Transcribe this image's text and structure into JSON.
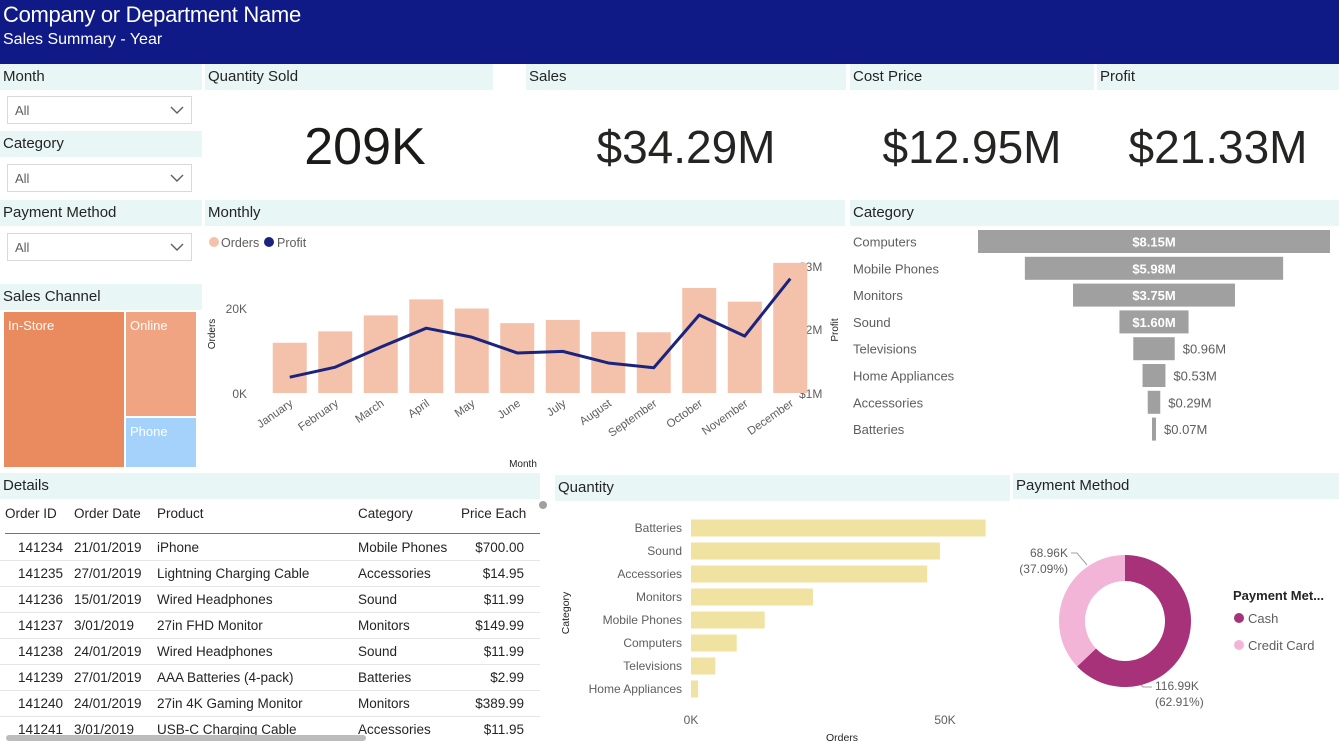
{
  "header": {
    "title": "Company or Department Name",
    "subtitle": "Sales Summary - Year"
  },
  "slicers": {
    "month": {
      "label": "Month",
      "value": "All"
    },
    "category": {
      "label": "Category",
      "value": "All"
    },
    "payment": {
      "label": "Payment Method",
      "value": "All"
    }
  },
  "kpis": {
    "quantity": {
      "label": "Quantity Sold",
      "value": "209K"
    },
    "sales": {
      "label": "Sales",
      "value": "$34.29M"
    },
    "cost": {
      "label": "Cost Price",
      "value": "$12.95M"
    },
    "profit": {
      "label": "Profit",
      "value": "$21.33M"
    }
  },
  "sales_channel": {
    "title": "Sales Channel",
    "items": [
      {
        "label": "In-Store",
        "color": "#ea8a5f"
      },
      {
        "label": "Online",
        "color": "#f1a482"
      },
      {
        "label": "Phone",
        "color": "#a5d2fb"
      }
    ]
  },
  "details": {
    "title": "Details",
    "columns": [
      "Order ID",
      "Order Date",
      "Product",
      "Category",
      "Price Each"
    ],
    "rows": [
      [
        "141234",
        "21/01/2019",
        "iPhone",
        "Mobile Phones",
        "$700.00"
      ],
      [
        "141235",
        "27/01/2019",
        "Lightning Charging Cable",
        "Accessories",
        "$14.95"
      ],
      [
        "141236",
        "15/01/2019",
        "Wired Headphones",
        "Sound",
        "$11.99"
      ],
      [
        "141237",
        "3/01/2019",
        "27in FHD Monitor",
        "Monitors",
        "$149.99"
      ],
      [
        "141238",
        "24/01/2019",
        "Wired Headphones",
        "Sound",
        "$11.99"
      ],
      [
        "141239",
        "27/01/2019",
        "AAA Batteries (4-pack)",
        "Batteries",
        "$2.99"
      ],
      [
        "141240",
        "24/01/2019",
        "27in 4K Gaming Monitor",
        "Monitors",
        "$389.99"
      ],
      [
        "141241",
        "3/01/2019",
        "USB-C Charging Cable",
        "Accessories",
        "$11.95"
      ]
    ]
  },
  "chart_data": [
    {
      "id": "monthly",
      "type": "bar",
      "title": "Monthly",
      "legend": [
        "Orders",
        "Profit"
      ],
      "colors": {
        "bar": "#f4c2aa",
        "line": "#1a237e"
      },
      "categories": [
        "January",
        "February",
        "March",
        "April",
        "May",
        "June",
        "July",
        "August",
        "September",
        "October",
        "November",
        "December"
      ],
      "series": [
        {
          "name": "Orders",
          "values": [
            11000,
            13500,
            17000,
            20500,
            18500,
            15300,
            16000,
            13400,
            13300,
            23000,
            20000,
            28500
          ]
        },
        {
          "name": "Profit",
          "values": [
            1.05,
            1.24,
            1.62,
            1.98,
            1.81,
            1.51,
            1.54,
            1.32,
            1.23,
            2.23,
            1.83,
            2.92
          ]
        }
      ],
      "xlabel": "Month",
      "ylabel": "Orders",
      "y2label": "Profit",
      "yticks": [
        "0K",
        "20K"
      ],
      "y2ticks": [
        "$1M",
        "$2M",
        "$3M"
      ],
      "ylim": [
        0,
        30000
      ],
      "y2lim": [
        0.75,
        3.35
      ]
    },
    {
      "id": "category_funnel",
      "type": "bar",
      "title": "Category",
      "bar_color": "#a0a0a0",
      "categories": [
        "Computers",
        "Mobile Phones",
        "Monitors",
        "Sound",
        "Televisions",
        "Home Appliances",
        "Accessories",
        "Batteries"
      ],
      "values": [
        8.15,
        5.98,
        3.75,
        1.6,
        0.96,
        0.53,
        0.29,
        0.07
      ],
      "labels": [
        "$8.15M",
        "$5.98M",
        "$3.75M",
        "$1.60M",
        "$0.96M",
        "$0.53M",
        "$0.29M",
        "$0.07M"
      ]
    },
    {
      "id": "quantity",
      "type": "bar",
      "title": "Quantity",
      "bar_color": "#f0e2a0",
      "categories": [
        "Batteries",
        "Sound",
        "Accessories",
        "Monitors",
        "Mobile Phones",
        "Computers",
        "Televisions",
        "Home Appliances"
      ],
      "values": [
        58000,
        49000,
        46500,
        24000,
        14500,
        9000,
        4800,
        1400
      ],
      "xlabel": "Orders",
      "ylabel": "Category",
      "xticks": [
        "0K",
        "50K"
      ],
      "xlim": [
        0,
        60000
      ]
    },
    {
      "id": "payment_method",
      "type": "pie",
      "title": "Payment Method",
      "legend_title": "Payment Met...",
      "categories": [
        "Cash",
        "Credit Card"
      ],
      "values": [
        116.99,
        68.96
      ],
      "colors": [
        "#a83279",
        "#f2b5d8"
      ],
      "labels": [
        {
          "value": "116.99K",
          "pct": "(62.91%)"
        },
        {
          "value": "68.96K",
          "pct": "(37.09%)"
        }
      ]
    }
  ]
}
